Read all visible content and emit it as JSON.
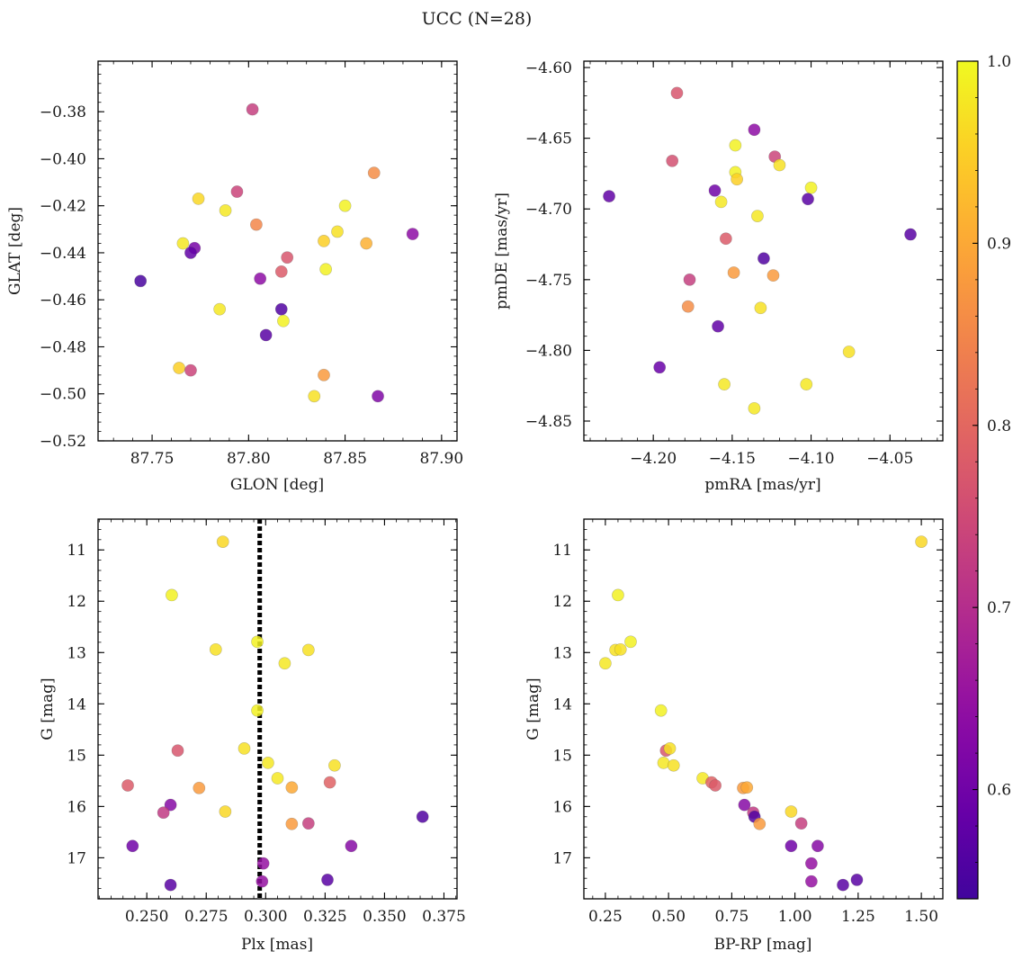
{
  "figure": {
    "title": "UCC (N=28)"
  },
  "colorbar": {
    "colormap": "plasma",
    "range": [
      0.54,
      1.0
    ],
    "ticks": [
      "1.0",
      "0.9",
      "0.8",
      "0.7",
      "0.6"
    ],
    "tick_values": [
      1.0,
      0.9,
      0.8,
      0.7,
      0.6
    ]
  },
  "chart_data": [
    {
      "id": "glon-glat",
      "type": "scatter",
      "xlabel": "GLON [deg]",
      "ylabel": "GLAT [deg]",
      "xlim": [
        87.722,
        87.908
      ],
      "ylim": [
        -0.52,
        -0.3585
      ],
      "y_inverted": false,
      "xticks": [
        87.75,
        87.8,
        87.85,
        87.9
      ],
      "xtick_labels": [
        "87.75",
        "87.80",
        "87.85",
        "87.90"
      ],
      "yticks": [
        -0.38,
        -0.4,
        -0.42,
        -0.44,
        -0.46,
        -0.48,
        -0.5,
        -0.52
      ],
      "ytick_labels": [
        "−0.38",
        "−0.40",
        "−0.42",
        "−0.44",
        "−0.46",
        "−0.48",
        "−0.50",
        "−0.52"
      ],
      "points": [
        {
          "x": 87.802,
          "y": -0.379,
          "c": 0.73
        },
        {
          "x": 87.865,
          "y": -0.406,
          "c": 0.86
        },
        {
          "x": 87.794,
          "y": -0.414,
          "c": 0.74
        },
        {
          "x": 87.774,
          "y": -0.417,
          "c": 0.96
        },
        {
          "x": 87.85,
          "y": -0.42,
          "c": 0.99
        },
        {
          "x": 87.788,
          "y": -0.422,
          "c": 0.98
        },
        {
          "x": 87.804,
          "y": -0.428,
          "c": 0.85
        },
        {
          "x": 87.846,
          "y": -0.431,
          "c": 0.97
        },
        {
          "x": 87.885,
          "y": -0.432,
          "c": 0.64
        },
        {
          "x": 87.839,
          "y": -0.435,
          "c": 0.95
        },
        {
          "x": 87.766,
          "y": -0.436,
          "c": 0.98
        },
        {
          "x": 87.861,
          "y": -0.436,
          "c": 0.91
        },
        {
          "x": 87.772,
          "y": -0.438,
          "c": 0.61
        },
        {
          "x": 87.77,
          "y": -0.44,
          "c": 0.58
        },
        {
          "x": 87.82,
          "y": -0.442,
          "c": 0.77
        },
        {
          "x": 87.84,
          "y": -0.447,
          "c": 0.99
        },
        {
          "x": 87.817,
          "y": -0.448,
          "c": 0.78
        },
        {
          "x": 87.806,
          "y": -0.451,
          "c": 0.64
        },
        {
          "x": 87.744,
          "y": -0.452,
          "c": 0.55
        },
        {
          "x": 87.785,
          "y": -0.464,
          "c": 0.98
        },
        {
          "x": 87.817,
          "y": -0.464,
          "c": 0.56
        },
        {
          "x": 87.818,
          "y": -0.469,
          "c": 0.99
        },
        {
          "x": 87.809,
          "y": -0.475,
          "c": 0.57
        },
        {
          "x": 87.764,
          "y": -0.489,
          "c": 0.95
        },
        {
          "x": 87.77,
          "y": -0.49,
          "c": 0.74
        },
        {
          "x": 87.839,
          "y": -0.492,
          "c": 0.88
        },
        {
          "x": 87.834,
          "y": -0.501,
          "c": 0.97
        },
        {
          "x": 87.867,
          "y": -0.501,
          "c": 0.62
        }
      ]
    },
    {
      "id": "pm",
      "type": "scatter",
      "xlabel": "pmRA [mas/yr]",
      "ylabel": "pmDE [mas/yr]",
      "xlim": [
        -4.244,
        -4.0165
      ],
      "ylim": [
        -4.864,
        -4.5955
      ],
      "y_inverted": false,
      "xticks": [
        -4.2,
        -4.15,
        -4.1,
        -4.05
      ],
      "xtick_labels": [
        "−4.20",
        "−4.15",
        "−4.10",
        "−4.05"
      ],
      "yticks": [
        -4.6,
        -4.65,
        -4.7,
        -4.75,
        -4.8,
        -4.85
      ],
      "ytick_labels": [
        "−4.60",
        "−4.65",
        "−4.70",
        "−4.75",
        "−4.80",
        "−4.85"
      ],
      "points": [
        {
          "x": -4.185,
          "y": -4.618,
          "c": 0.77
        },
        {
          "x": -4.136,
          "y": -4.644,
          "c": 0.64
        },
        {
          "x": -4.148,
          "y": -4.655,
          "c": 0.99
        },
        {
          "x": -4.123,
          "y": -4.663,
          "c": 0.74
        },
        {
          "x": -4.188,
          "y": -4.666,
          "c": 0.76
        },
        {
          "x": -4.12,
          "y": -4.669,
          "c": 0.97
        },
        {
          "x": -4.148,
          "y": -4.674,
          "c": 0.99
        },
        {
          "x": -4.147,
          "y": -4.679,
          "c": 0.95
        },
        {
          "x": -4.1,
          "y": -4.685,
          "c": 0.99
        },
        {
          "x": -4.161,
          "y": -4.687,
          "c": 0.6
        },
        {
          "x": -4.228,
          "y": -4.691,
          "c": 0.58
        },
        {
          "x": -4.102,
          "y": -4.693,
          "c": 0.57
        },
        {
          "x": -4.157,
          "y": -4.695,
          "c": 0.98
        },
        {
          "x": -4.134,
          "y": -4.705,
          "c": 0.98
        },
        {
          "x": -4.037,
          "y": -4.718,
          "c": 0.57
        },
        {
          "x": -4.154,
          "y": -4.721,
          "c": 0.78
        },
        {
          "x": -4.13,
          "y": -4.735,
          "c": 0.56
        },
        {
          "x": -4.149,
          "y": -4.745,
          "c": 0.88
        },
        {
          "x": -4.124,
          "y": -4.747,
          "c": 0.88
        },
        {
          "x": -4.177,
          "y": -4.75,
          "c": 0.73
        },
        {
          "x": -4.178,
          "y": -4.769,
          "c": 0.86
        },
        {
          "x": -4.132,
          "y": -4.77,
          "c": 0.97
        },
        {
          "x": -4.159,
          "y": -4.783,
          "c": 0.58
        },
        {
          "x": -4.076,
          "y": -4.801,
          "c": 0.97
        },
        {
          "x": -4.196,
          "y": -4.812,
          "c": 0.59
        },
        {
          "x": -4.155,
          "y": -4.824,
          "c": 0.98
        },
        {
          "x": -4.103,
          "y": -4.824,
          "c": 0.98
        },
        {
          "x": -4.136,
          "y": -4.841,
          "c": 0.98
        }
      ]
    },
    {
      "id": "plx-g",
      "type": "scatter",
      "xlabel": "Plx [mas]",
      "ylabel": "G [mag]",
      "xlim": [
        0.2295,
        0.3805
      ],
      "ylim": [
        10.4,
        17.8
      ],
      "y_inverted": true,
      "xticks": [
        0.25,
        0.275,
        0.3,
        0.325,
        0.35,
        0.375
      ],
      "xtick_labels": [
        "0.250",
        "0.275",
        "0.300",
        "0.325",
        "0.350",
        "0.375"
      ],
      "yticks": [
        11,
        12,
        13,
        14,
        15,
        16,
        17
      ],
      "ytick_labels": [
        "11",
        "12",
        "13",
        "14",
        "15",
        "16",
        "17"
      ],
      "vline": {
        "x": 0.2975,
        "style": "dotted"
      },
      "points": [
        {
          "x": 0.282,
          "y": 10.84,
          "c": 0.96
        },
        {
          "x": 0.2605,
          "y": 11.88,
          "c": 0.99
        },
        {
          "x": 0.279,
          "y": 12.94,
          "c": 0.97
        },
        {
          "x": 0.2965,
          "y": 12.79,
          "c": 0.99
        },
        {
          "x": 0.318,
          "y": 12.95,
          "c": 0.97
        },
        {
          "x": 0.308,
          "y": 13.21,
          "c": 0.98
        },
        {
          "x": 0.2965,
          "y": 14.13,
          "c": 0.99
        },
        {
          "x": 0.263,
          "y": 14.91,
          "c": 0.77
        },
        {
          "x": 0.291,
          "y": 14.87,
          "c": 0.97
        },
        {
          "x": 0.301,
          "y": 15.15,
          "c": 0.98
        },
        {
          "x": 0.329,
          "y": 15.2,
          "c": 0.97
        },
        {
          "x": 0.305,
          "y": 15.45,
          "c": 0.98
        },
        {
          "x": 0.242,
          "y": 15.59,
          "c": 0.78
        },
        {
          "x": 0.272,
          "y": 15.64,
          "c": 0.88
        },
        {
          "x": 0.311,
          "y": 15.63,
          "c": 0.9
        },
        {
          "x": 0.327,
          "y": 15.53,
          "c": 0.79
        },
        {
          "x": 0.26,
          "y": 15.97,
          "c": 0.63
        },
        {
          "x": 0.257,
          "y": 16.12,
          "c": 0.72
        },
        {
          "x": 0.283,
          "y": 16.1,
          "c": 0.96
        },
        {
          "x": 0.366,
          "y": 16.2,
          "c": 0.56
        },
        {
          "x": 0.311,
          "y": 16.34,
          "c": 0.88
        },
        {
          "x": 0.318,
          "y": 16.33,
          "c": 0.73
        },
        {
          "x": 0.244,
          "y": 16.77,
          "c": 0.6
        },
        {
          "x": 0.336,
          "y": 16.77,
          "c": 0.63
        },
        {
          "x": 0.299,
          "y": 17.11,
          "c": 0.65
        },
        {
          "x": 0.326,
          "y": 17.43,
          "c": 0.57
        },
        {
          "x": 0.2985,
          "y": 17.46,
          "c": 0.65
        },
        {
          "x": 0.26,
          "y": 17.53,
          "c": 0.57
        }
      ]
    },
    {
      "id": "color-mag",
      "type": "scatter",
      "xlabel": "BP-RP [mag]",
      "ylabel": "G [mag]",
      "xlim": [
        0.165,
        1.585
      ],
      "ylim": [
        10.4,
        17.8
      ],
      "y_inverted": true,
      "xticks": [
        0.25,
        0.5,
        0.75,
        1.0,
        1.25,
        1.5
      ],
      "xtick_labels": [
        "0.25",
        "0.50",
        "0.75",
        "1.00",
        "1.25",
        "1.50"
      ],
      "yticks": [
        11,
        12,
        13,
        14,
        15,
        16,
        17
      ],
      "ytick_labels": [
        "11",
        "12",
        "13",
        "14",
        "15",
        "16",
        "17"
      ],
      "points": [
        {
          "x": 1.5,
          "y": 10.84,
          "c": 0.96
        },
        {
          "x": 0.3,
          "y": 11.88,
          "c": 0.99
        },
        {
          "x": 0.29,
          "y": 12.95,
          "c": 0.97
        },
        {
          "x": 0.31,
          "y": 12.94,
          "c": 0.97
        },
        {
          "x": 0.35,
          "y": 12.79,
          "c": 0.99
        },
        {
          "x": 0.25,
          "y": 13.21,
          "c": 0.98
        },
        {
          "x": 0.47,
          "y": 14.13,
          "c": 0.99
        },
        {
          "x": 0.49,
          "y": 14.91,
          "c": 0.77
        },
        {
          "x": 0.505,
          "y": 14.87,
          "c": 0.97
        },
        {
          "x": 0.48,
          "y": 15.15,
          "c": 0.98
        },
        {
          "x": 0.52,
          "y": 15.2,
          "c": 0.97
        },
        {
          "x": 0.635,
          "y": 15.45,
          "c": 0.98
        },
        {
          "x": 0.67,
          "y": 15.53,
          "c": 0.79
        },
        {
          "x": 0.685,
          "y": 15.59,
          "c": 0.78
        },
        {
          "x": 0.795,
          "y": 15.64,
          "c": 0.88
        },
        {
          "x": 0.81,
          "y": 15.63,
          "c": 0.9
        },
        {
          "x": 0.8,
          "y": 15.97,
          "c": 0.63
        },
        {
          "x": 0.835,
          "y": 16.12,
          "c": 0.72
        },
        {
          "x": 0.84,
          "y": 16.2,
          "c": 0.56
        },
        {
          "x": 0.985,
          "y": 16.1,
          "c": 0.96
        },
        {
          "x": 0.86,
          "y": 16.34,
          "c": 0.88
        },
        {
          "x": 1.025,
          "y": 16.33,
          "c": 0.73
        },
        {
          "x": 0.985,
          "y": 16.77,
          "c": 0.6
        },
        {
          "x": 1.09,
          "y": 16.77,
          "c": 0.63
        },
        {
          "x": 1.065,
          "y": 17.11,
          "c": 0.65
        },
        {
          "x": 1.245,
          "y": 17.43,
          "c": 0.57
        },
        {
          "x": 1.065,
          "y": 17.46,
          "c": 0.65
        },
        {
          "x": 1.19,
          "y": 17.53,
          "c": 0.57
        }
      ]
    }
  ]
}
